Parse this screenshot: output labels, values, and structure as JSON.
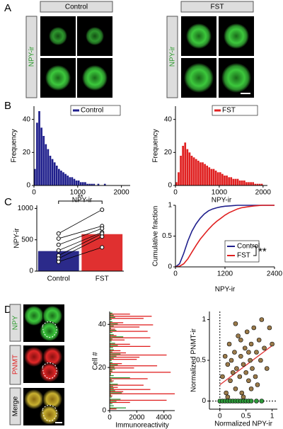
{
  "figure": {
    "panel_letters": [
      "A",
      "B",
      "C",
      "D"
    ],
    "panel_a": {
      "headers": [
        "Control",
        "FST"
      ],
      "row_label": "NPY-ir"
    },
    "panel_d": {
      "row_labels": [
        "NPY",
        "PNMT",
        "Merge"
      ]
    }
  },
  "chart_data": [
    {
      "type": "histogram",
      "xlabel": "NPY-ir",
      "ylabel": "Frequency",
      "bins": [
        0,
        50,
        100,
        150,
        200,
        250,
        300,
        350,
        400,
        450,
        500,
        550,
        600,
        650,
        700,
        750,
        800,
        850,
        900,
        950,
        1000,
        1050,
        1100,
        1150,
        1200,
        1250,
        1300,
        1350,
        1400,
        1450,
        1500,
        1550,
        1600,
        1650,
        1700,
        1750,
        1800,
        1850,
        1900,
        1950,
        2000
      ],
      "series": [
        {
          "name": "Control",
          "color": "#1f1f8c",
          "values": [
            10,
            38,
            45,
            35,
            30,
            25,
            22,
            18,
            16,
            14,
            12,
            10,
            9,
            8,
            7,
            6,
            5,
            5,
            4,
            3,
            3,
            2,
            2,
            2,
            1,
            1,
            1,
            1,
            0,
            1,
            0,
            0,
            1,
            0,
            0,
            0,
            0,
            0,
            0,
            0
          ]
        }
      ],
      "xlim": [
        0,
        2200
      ],
      "xticks": [
        0,
        1000,
        2000
      ],
      "ylim": [
        0,
        48
      ],
      "yticks": [
        0,
        20,
        40
      ]
    },
    {
      "type": "histogram",
      "xlabel": "NPY-ir",
      "ylabel": "Frequency",
      "bins": [
        0,
        50,
        100,
        150,
        200,
        250,
        300,
        350,
        400,
        450,
        500,
        550,
        600,
        650,
        700,
        750,
        800,
        850,
        900,
        950,
        1000,
        1050,
        1100,
        1150,
        1200,
        1250,
        1300,
        1350,
        1400,
        1450,
        1500,
        1550,
        1600,
        1650,
        1700,
        1750,
        1800,
        1850,
        1900,
        1950,
        2000
      ],
      "series": [
        {
          "name": "FST",
          "color": "#e02020",
          "values": [
            2,
            8,
            18,
            24,
            26,
            22,
            20,
            18,
            17,
            16,
            15,
            14,
            14,
            13,
            12,
            11,
            10,
            10,
            9,
            8,
            8,
            7,
            6,
            6,
            5,
            5,
            4,
            4,
            4,
            3,
            3,
            3,
            2,
            2,
            2,
            2,
            1,
            1,
            1,
            1
          ]
        }
      ],
      "xlim": [
        0,
        2100
      ],
      "xticks": [
        0,
        1000,
        2000
      ],
      "ylim": [
        0,
        48
      ],
      "yticks": [
        0,
        20,
        40
      ]
    },
    {
      "type": "bar",
      "ylabel": "NPY-ir",
      "categories": [
        "Control",
        "FST"
      ],
      "values": [
        320,
        590
      ],
      "colors": [
        "#2b2a8a",
        "#e03030"
      ],
      "pairs": [
        [
          600,
          980
        ],
        [
          520,
          720
        ],
        [
          420,
          680
        ],
        [
          330,
          620
        ],
        [
          250,
          600
        ],
        [
          200,
          550
        ],
        [
          150,
          380
        ]
      ],
      "annotation": "**",
      "ylim": [
        0,
        1050
      ],
      "yticks": [
        0,
        500,
        1000
      ]
    },
    {
      "type": "line",
      "xlabel": "NPY-ir",
      "ylabel": "Cumulative fraction",
      "x": [
        0,
        100,
        200,
        300,
        400,
        500,
        600,
        700,
        800,
        900,
        1000,
        1100,
        1200,
        1300,
        1400,
        1500,
        1600,
        1700,
        1800,
        1900,
        2000,
        2100,
        2200,
        2300,
        2400
      ],
      "series": [
        {
          "name": "Control",
          "color": "#1f1f8c",
          "values": [
            0,
            0.05,
            0.22,
            0.42,
            0.58,
            0.7,
            0.79,
            0.86,
            0.91,
            0.94,
            0.96,
            0.975,
            0.985,
            0.99,
            0.995,
            1,
            1,
            1,
            1,
            1,
            1,
            1,
            1,
            1,
            1
          ]
        },
        {
          "name": "FST",
          "color": "#e02020",
          "values": [
            0,
            0.01,
            0.05,
            0.13,
            0.24,
            0.35,
            0.45,
            0.53,
            0.61,
            0.68,
            0.74,
            0.79,
            0.84,
            0.88,
            0.91,
            0.94,
            0.96,
            0.97,
            0.98,
            0.99,
            0.995,
            1,
            1,
            1,
            1
          ]
        }
      ],
      "annotation": "**",
      "xlim": [
        0,
        2400
      ],
      "xticks": [
        0,
        1200,
        2400
      ],
      "ylim": [
        0,
        1
      ],
      "yticks": [
        0,
        0.5,
        1
      ]
    },
    {
      "type": "barh",
      "xlabel": "Immunoreactivity",
      "ylabel": "Cell #",
      "series": [
        {
          "color": "#2e9a3a",
          "values": [
            1200,
            300,
            200,
            500,
            800,
            150,
            100,
            900,
            400,
            300,
            250,
            600,
            200,
            150,
            1500,
            300,
            100,
            200,
            400,
            350,
            600,
            200,
            150,
            300,
            500,
            800,
            200,
            300,
            250,
            600,
            400,
            150,
            200,
            1000,
            300,
            200,
            500,
            100,
            300,
            600,
            200,
            150,
            400,
            300,
            200
          ]
        },
        {
          "color": "#e02020",
          "values": [
            500,
            0,
            0,
            1500,
            4200,
            0,
            200,
            4800,
            1000,
            3000,
            600,
            2500,
            0,
            300,
            2800,
            0,
            100,
            4500,
            200,
            1800,
            3500,
            900,
            0,
            2000,
            2200,
            4200,
            1200,
            800,
            0,
            3000,
            1500,
            0,
            1100,
            3000,
            500,
            0,
            2800,
            400,
            2200,
            3200,
            1000,
            0,
            2500,
            3100,
            1500
          ]
        }
      ],
      "xlim": [
        0,
        4800
      ],
      "xticks": [
        0,
        2000,
        4000
      ],
      "ylim": [
        0,
        46
      ],
      "yticks": [
        0,
        20,
        40
      ]
    },
    {
      "type": "scatter",
      "xlabel": "Normalized NPY-ir",
      "ylabel": "Normalized PNMT-ir",
      "series": [
        {
          "color": "#9a7a4a",
          "x": [
            0.05,
            0.1,
            0.12,
            0.15,
            0.18,
            0.2,
            0.22,
            0.25,
            0.28,
            0.3,
            0.32,
            0.35,
            0.38,
            0.4,
            0.42,
            0.45,
            0.48,
            0.5,
            0.52,
            0.55,
            0.58,
            0.6,
            0.62,
            0.65,
            0.68,
            0.7,
            0.72,
            0.75,
            0.78,
            0.8,
            0.85,
            0.9,
            0.95,
            1.0,
            0.3,
            0.45,
            0.6,
            0.15,
            0.55,
            0.4
          ],
          "values": [
            0.3,
            0.55,
            0.1,
            0.45,
            0.7,
            0.25,
            0.5,
            0.35,
            0.6,
            0.15,
            0.4,
            0.8,
            0.3,
            0.55,
            0.1,
            0.45,
            0.65,
            0.35,
            0.85,
            0.25,
            0.5,
            0.7,
            0.4,
            0.9,
            0.3,
            0.6,
            0.2,
            0.75,
            0.5,
            1.0,
            0.65,
            0.4,
            0.9,
            0.7,
            0.95,
            0.05,
            0.15,
            0.05,
            0.6,
            0.75
          ]
        },
        {
          "color": "#2e9a3a",
          "x": [
            0,
            0.05,
            0.1,
            0.15,
            0.2,
            0.25,
            0.3,
            0.35,
            0.4,
            0.45,
            0.5,
            0.55,
            0.6,
            0.7,
            0.8
          ],
          "values": [
            0,
            0,
            0,
            0,
            0,
            0,
            0,
            0,
            0,
            0,
            0,
            0,
            0,
            0,
            0
          ]
        }
      ],
      "fit": {
        "color": "#e03030",
        "x": [
          0,
          1
        ],
        "values": [
          0.2,
          0.68
        ]
      },
      "xlim": [
        -0.2,
        1.1
      ],
      "xticks": [
        0,
        0.5,
        1
      ],
      "ylim": [
        -0.1,
        1.1
      ],
      "yticks": [
        0,
        0.5,
        1
      ]
    }
  ]
}
